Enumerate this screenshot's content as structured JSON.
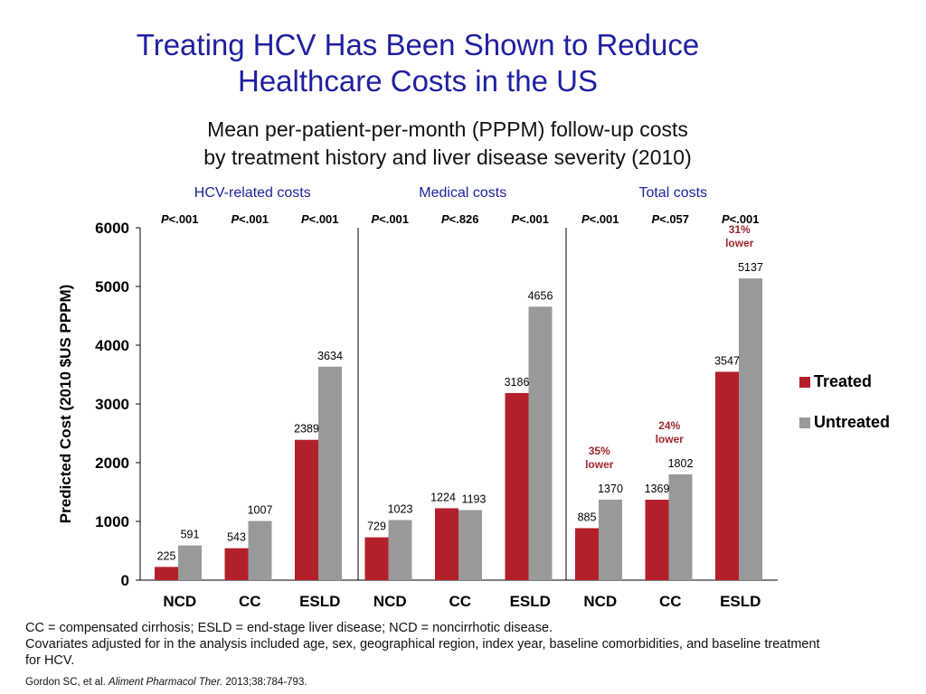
{
  "title_line1": "Treating HCV Has Been Shown to Reduce",
  "title_line2": "Healthcare Costs in the US",
  "subtitle_line1": "Mean per-patient-per-month (PPPM) follow-up costs",
  "subtitle_line2": "by treatment history and liver disease severity (2010)",
  "footnote_line1": "CC = compensated cirrhosis; ESLD = end-stage liver disease; NCD = noncirrhotic disease.",
  "footnote_line2": "Covariates adjusted for in the analysis included age, sex, geographical region, index year, baseline comorbidities, and baseline treatment for HCV.",
  "citation": {
    "prefix": "Gordon SC, et al. ",
    "journal": "Aliment Pharmacol Ther.",
    "suffix": " 2013;38:784-793."
  },
  "colors": {
    "treated": "#b3202a",
    "untreated": "#999999",
    "title": "#1f1fa0",
    "panel_label": "#1f1fa0",
    "reduction": "#a02830"
  },
  "chart_data": {
    "type": "bar",
    "ylabel": "Predicted Cost (2010 $US PPPM)",
    "ylim": [
      0,
      6000
    ],
    "yticks": [
      0,
      1000,
      2000,
      3000,
      4000,
      5000,
      6000
    ],
    "series": [
      {
        "name": "Treated",
        "color": "#b3202a"
      },
      {
        "name": "Untreated",
        "color": "#999999"
      }
    ],
    "panels": [
      {
        "label": "HCV-related costs",
        "groups": [
          {
            "category": "NCD",
            "treated": 225,
            "untreated": 591,
            "p_prefix": "P",
            "p_value": "<.001"
          },
          {
            "category": "CC",
            "treated": 543,
            "untreated": 1007,
            "p_prefix": "P",
            "p_value": "<.001"
          },
          {
            "category": "ESLD",
            "treated": 2389,
            "untreated": 3634,
            "p_prefix": "P",
            "p_value": "<.001"
          }
        ]
      },
      {
        "label": "Medical costs",
        "groups": [
          {
            "category": "NCD",
            "treated": 729,
            "untreated": 1023,
            "p_prefix": "P",
            "p_value": "<.001"
          },
          {
            "category": "CC",
            "treated": 1224,
            "untreated": 1193,
            "p_prefix": "P",
            "p_value": "<.826"
          },
          {
            "category": "ESLD",
            "treated": 3186,
            "untreated": 4656,
            "p_prefix": "P",
            "p_value": "<.001"
          }
        ]
      },
      {
        "label": "Total costs",
        "groups": [
          {
            "category": "NCD",
            "treated": 885,
            "untreated": 1370,
            "p_prefix": "P",
            "p_value": "<.001",
            "reduction": [
              "35%",
              "lower"
            ]
          },
          {
            "category": "CC",
            "treated": 1369,
            "untreated": 1802,
            "p_prefix": "P",
            "p_value": "<.057",
            "reduction": [
              "24%",
              "lower"
            ]
          },
          {
            "category": "ESLD",
            "treated": 3547,
            "untreated": 5137,
            "p_prefix": "P",
            "p_value": "<.001",
            "reduction": [
              "31%",
              "lower"
            ]
          }
        ]
      }
    ]
  }
}
